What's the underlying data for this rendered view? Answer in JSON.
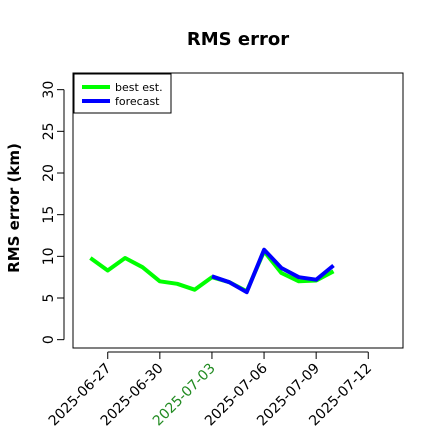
{
  "chart_data": {
    "type": "line",
    "title": "RMS error",
    "xlabel": "",
    "ylabel": "RMS error (km)",
    "ylim": [
      -1,
      32
    ],
    "yticks": [
      0,
      5,
      10,
      15,
      20,
      25,
      30
    ],
    "xlim": [
      "2025-06-25",
      "2025-07-14"
    ],
    "xticks": [
      {
        "date": "2025-06-27",
        "label": "2025-06-27",
        "color": "#000000"
      },
      {
        "date": "2025-06-30",
        "label": "2025-06-30",
        "color": "#000000"
      },
      {
        "date": "2025-07-03",
        "label": "2025-07-03",
        "color": "#228B22"
      },
      {
        "date": "2025-07-06",
        "label": "2025-07-06",
        "color": "#000000"
      },
      {
        "date": "2025-07-09",
        "label": "2025-07-09",
        "color": "#000000"
      },
      {
        "date": "2025-07-12",
        "label": "2025-07-12",
        "color": "#000000"
      }
    ],
    "legend_position": "top-left",
    "grid": false,
    "series": [
      {
        "name": "best est.",
        "color": "#00ff00",
        "points": [
          {
            "x": "2025-06-26",
            "y": 9.8
          },
          {
            "x": "2025-06-27",
            "y": 8.3
          },
          {
            "x": "2025-06-28",
            "y": 9.8
          },
          {
            "x": "2025-06-29",
            "y": 8.7
          },
          {
            "x": "2025-06-30",
            "y": 7.0
          },
          {
            "x": "2025-07-01",
            "y": 6.7
          },
          {
            "x": "2025-07-02",
            "y": 6.0
          },
          {
            "x": "2025-07-03",
            "y": 7.5
          },
          {
            "x": "2025-07-04",
            "y": 6.9
          },
          {
            "x": "2025-07-05",
            "y": 5.8
          },
          {
            "x": "2025-07-06",
            "y": 10.6
          },
          {
            "x": "2025-07-07",
            "y": 8.0
          },
          {
            "x": "2025-07-08",
            "y": 7.0
          },
          {
            "x": "2025-07-09",
            "y": 7.1
          },
          {
            "x": "2025-07-10",
            "y": 8.2
          }
        ]
      },
      {
        "name": "forecast",
        "color": "#0000ff",
        "points": [
          {
            "x": "2025-07-03",
            "y": 7.6
          },
          {
            "x": "2025-07-04",
            "y": 6.9
          },
          {
            "x": "2025-07-05",
            "y": 5.7
          },
          {
            "x": "2025-07-06",
            "y": 10.8
          },
          {
            "x": "2025-07-07",
            "y": 8.6
          },
          {
            "x": "2025-07-08",
            "y": 7.5
          },
          {
            "x": "2025-07-09",
            "y": 7.2
          },
          {
            "x": "2025-07-10",
            "y": 8.9
          }
        ]
      }
    ]
  }
}
